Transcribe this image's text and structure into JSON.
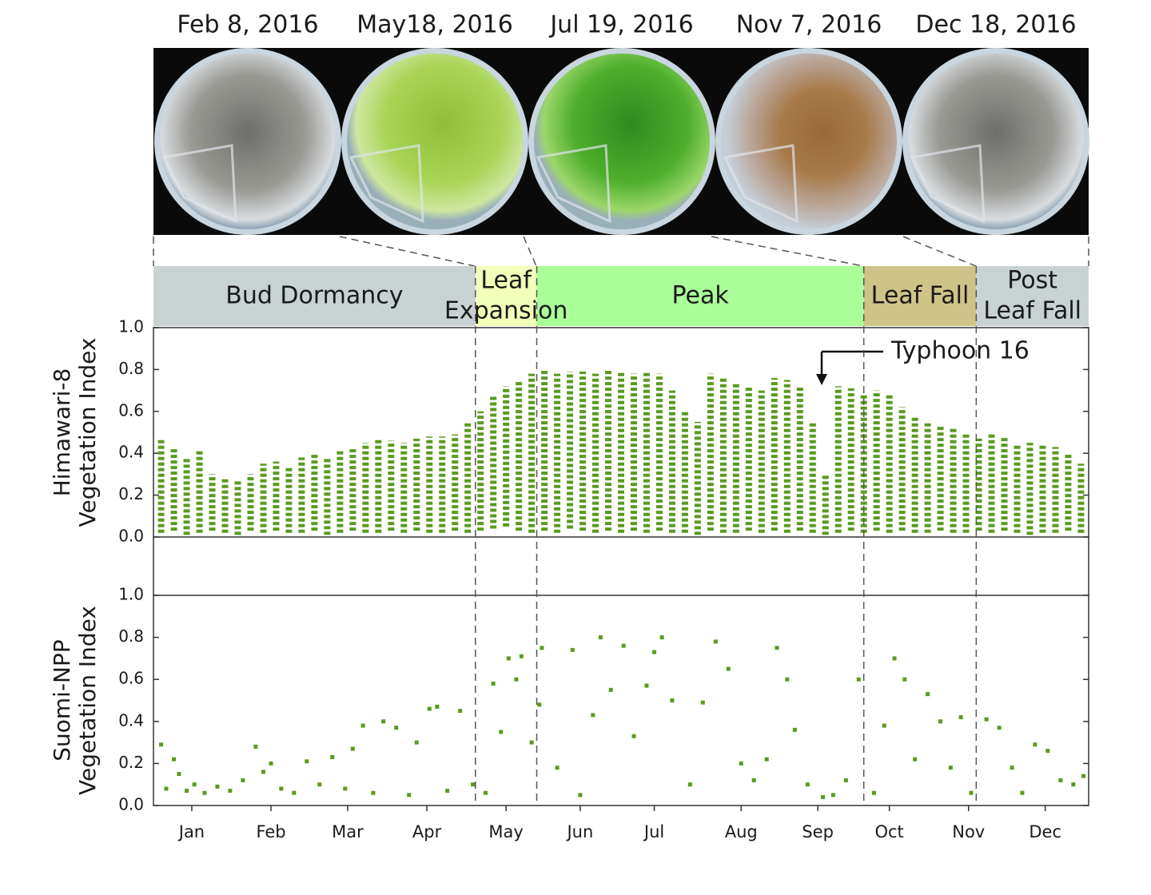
{
  "photos": [
    {
      "date": "Feb 8, 2016",
      "tone": "bare"
    },
    {
      "date": "May18, 2016",
      "tone": "young"
    },
    {
      "date": "Jul 19, 2016",
      "tone": "peak"
    },
    {
      "date": "Nov 7, 2016",
      "tone": "autumn"
    },
    {
      "date": "Dec 18, 2016",
      "tone": "bare"
    }
  ],
  "phases": [
    {
      "label": [
        "Bud Dormancy"
      ],
      "start": 0,
      "end": 126,
      "color": "#c9d2d2"
    },
    {
      "label": [
        "Leaf",
        "Expansion"
      ],
      "start": 126,
      "end": 150,
      "color": "#f2ffb8"
    },
    {
      "label": [
        "Peak"
      ],
      "start": 150,
      "end": 278,
      "color": "#aaff99"
    },
    {
      "label": [
        "Leaf Fall"
      ],
      "start": 278,
      "end": 322,
      "color": "#cfc488"
    },
    {
      "label": [
        "Post",
        "Leaf Fall"
      ],
      "start": 322,
      "end": 366,
      "color": "#c9d2d2"
    }
  ],
  "annotation": "Typhoon 16",
  "chart_data": [
    {
      "type": "range",
      "ylabel": [
        "Himawari-8",
        "Vegetation Index"
      ],
      "color": "#5a9a1e",
      "xlim": [
        0,
        366
      ],
      "ylim": [
        0,
        1
      ],
      "yticks": [
        {
          "value": 0,
          "label": "0.0"
        },
        0.2,
        0.4,
        0.6,
        0.8,
        {
          "value": 1,
          "label": "1.0"
        }
      ],
      "x": [
        3,
        8,
        13,
        18,
        23,
        28,
        33,
        38,
        43,
        48,
        53,
        58,
        63,
        68,
        73,
        78,
        83,
        88,
        93,
        98,
        103,
        108,
        113,
        118,
        123,
        128,
        133,
        138,
        143,
        148,
        153,
        158,
        163,
        168,
        173,
        178,
        183,
        188,
        193,
        198,
        203,
        208,
        213,
        218,
        223,
        228,
        233,
        238,
        243,
        248,
        253,
        258,
        263,
        268,
        273,
        278,
        283,
        288,
        293,
        298,
        303,
        308,
        313,
        318,
        323,
        328,
        333,
        338,
        343,
        348,
        353,
        358,
        363
      ],
      "low": [
        0.02,
        0.03,
        0.01,
        0.02,
        0.03,
        0.02,
        0.01,
        0.03,
        0.02,
        0.03,
        0.02,
        0.02,
        0.03,
        0.01,
        0.02,
        0.03,
        0.02,
        0.02,
        0.03,
        0.02,
        0.03,
        0.02,
        0.02,
        0.03,
        0.02,
        0.03,
        0.04,
        0.05,
        0.03,
        0.02,
        0.03,
        0.02,
        0.04,
        0.03,
        0.02,
        0.03,
        0.02,
        0.03,
        0.02,
        0.03,
        0.02,
        0.02,
        0.01,
        0.03,
        0.02,
        0.02,
        0.03,
        0.02,
        0.03,
        0.02,
        0.03,
        0.02,
        0.01,
        0.02,
        0.03,
        0.02,
        0.03,
        0.02,
        0.03,
        0.02,
        0.02,
        0.03,
        0.02,
        0.02,
        0.03,
        0.02,
        0.03,
        0.02,
        0.01,
        0.02,
        0.02,
        0.03,
        0.02
      ],
      "high": [
        0.47,
        0.42,
        0.38,
        0.42,
        0.3,
        0.28,
        0.27,
        0.3,
        0.35,
        0.36,
        0.33,
        0.38,
        0.4,
        0.38,
        0.42,
        0.42,
        0.45,
        0.47,
        0.46,
        0.45,
        0.47,
        0.48,
        0.48,
        0.49,
        0.55,
        0.6,
        0.67,
        0.72,
        0.74,
        0.78,
        0.8,
        0.78,
        0.79,
        0.79,
        0.78,
        0.8,
        0.79,
        0.78,
        0.79,
        0.78,
        0.7,
        0.6,
        0.55,
        0.78,
        0.76,
        0.74,
        0.72,
        0.7,
        0.76,
        0.75,
        0.72,
        0.55,
        0.3,
        0.72,
        0.71,
        0.68,
        0.7,
        0.68,
        0.62,
        0.58,
        0.55,
        0.53,
        0.52,
        0.5,
        0.47,
        0.5,
        0.48,
        0.44,
        0.45,
        0.44,
        0.43,
        0.4,
        0.35
      ]
    },
    {
      "type": "scatter",
      "ylabel": [
        "Suomi-NPP",
        "Vegetation Index"
      ],
      "color": "#5a9a1e",
      "xlim": [
        0,
        366
      ],
      "ylim": [
        0,
        1
      ],
      "yticks": [
        {
          "value": 0,
          "label": "0.0"
        },
        0.2,
        0.4,
        0.6,
        0.8,
        {
          "value": 1,
          "label": "1.0"
        }
      ],
      "xticks": [
        {
          "value": 15,
          "label": "Jan"
        },
        {
          "value": 46,
          "label": "Feb"
        },
        {
          "value": 76,
          "label": "Mar"
        },
        {
          "value": 107,
          "label": "Apr"
        },
        {
          "value": 138,
          "label": "May"
        },
        {
          "value": 167,
          "label": "Jun"
        },
        {
          "value": 196,
          "label": "Jul"
        },
        {
          "value": 230,
          "label": "Aug"
        },
        {
          "value": 260,
          "label": "Sep"
        },
        {
          "value": 288,
          "label": "Oct"
        },
        {
          "value": 319,
          "label": "Nov"
        },
        {
          "value": 349,
          "label": "Dec"
        }
      ],
      "x": [
        3,
        5,
        8,
        10,
        13,
        16,
        20,
        25,
        30,
        35,
        40,
        43,
        46,
        50,
        55,
        60,
        65,
        70,
        75,
        78,
        82,
        86,
        90,
        95,
        100,
        103,
        108,
        111,
        115,
        120,
        125,
        130,
        133,
        136,
        139,
        142,
        144,
        148,
        151,
        152,
        158,
        164,
        167,
        172,
        175,
        179,
        184,
        188,
        193,
        196,
        199,
        203,
        210,
        215,
        220,
        225,
        230,
        235,
        240,
        244,
        248,
        251,
        256,
        262,
        266,
        271,
        276,
        282,
        286,
        290,
        294,
        298,
        303,
        308,
        312,
        316,
        320,
        326,
        331,
        336,
        340,
        345,
        350,
        355,
        360,
        364
      ],
      "values": [
        0.29,
        0.08,
        0.22,
        0.15,
        0.07,
        0.1,
        0.06,
        0.09,
        0.07,
        0.12,
        0.28,
        0.16,
        0.2,
        0.08,
        0.06,
        0.21,
        0.1,
        0.23,
        0.08,
        0.27,
        0.38,
        0.06,
        0.4,
        0.37,
        0.05,
        0.3,
        0.46,
        0.47,
        0.07,
        0.45,
        0.1,
        0.06,
        0.58,
        0.35,
        0.7,
        0.6,
        0.71,
        0.3,
        0.48,
        0.75,
        0.18,
        0.74,
        0.05,
        0.43,
        0.8,
        0.55,
        0.76,
        0.33,
        0.57,
        0.73,
        0.8,
        0.5,
        0.1,
        0.49,
        0.78,
        0.65,
        0.2,
        0.12,
        0.22,
        0.75,
        0.6,
        0.36,
        0.1,
        0.04,
        0.05,
        0.12,
        0.6,
        0.06,
        0.38,
        0.7,
        0.6,
        0.22,
        0.53,
        0.4,
        0.18,
        0.42,
        0.06,
        0.41,
        0.37,
        0.18,
        0.06,
        0.29,
        0.26,
        0.12,
        0.1,
        0.14
      ]
    }
  ]
}
